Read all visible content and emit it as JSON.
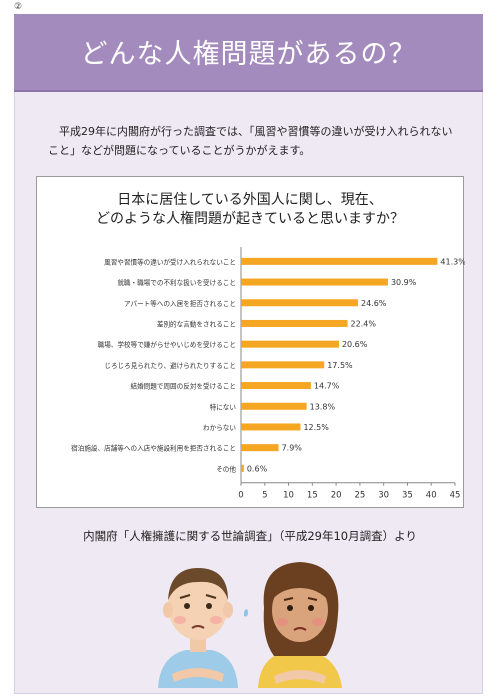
{
  "page": {
    "number": "②",
    "title": "どんな人権問題があるの？",
    "intro": "平成29年に内閣府が行った調査では、「風習や習慣等の違いが受け入れられないこと」などが問題になっていることがうかがえます。",
    "source": "内閣府「人権擁護に関する世論調査」（平成29年10月調査）より"
  },
  "colors": {
    "title_band": "#a48bbe",
    "background": "#efe9f4",
    "bar": "#f5a623"
  },
  "chart_data": {
    "type": "bar",
    "orientation": "horizontal",
    "title_lines": [
      "日本に居住している外国人に関し、現在、",
      "どのような人権問題が起きていると思いますか？"
    ],
    "categories": [
      "風習や習慣等の違いが受け入れられないこと",
      "就職・職場での不利な扱いを受けること",
      "アパート等への入居を拒否されること",
      "差別的な言動をされること",
      "職場、学校等で嫌がらせやいじめを受けること",
      "じろじろ見られたり、避けられたりすること",
      "結婚問題で周囲の反対を受けること",
      "特にない",
      "わからない",
      "宿泊施設、店舗等への入店や施設利用を拒否されること",
      "その他"
    ],
    "values": [
      41.3,
      30.9,
      24.6,
      22.4,
      20.6,
      17.5,
      14.7,
      13.8,
      12.5,
      7.9,
      0.6
    ],
    "value_labels": [
      "41.3%",
      "30.9%",
      "24.6%",
      "22.4%",
      "20.6%",
      "17.5%",
      "14.7%",
      "13.8%",
      "12.5%",
      "7.9%",
      "0.6%"
    ],
    "xlim": [
      0,
      45
    ],
    "xticks": [
      0,
      5,
      10,
      15,
      20,
      25,
      30,
      35,
      40,
      45
    ],
    "grid": false
  }
}
